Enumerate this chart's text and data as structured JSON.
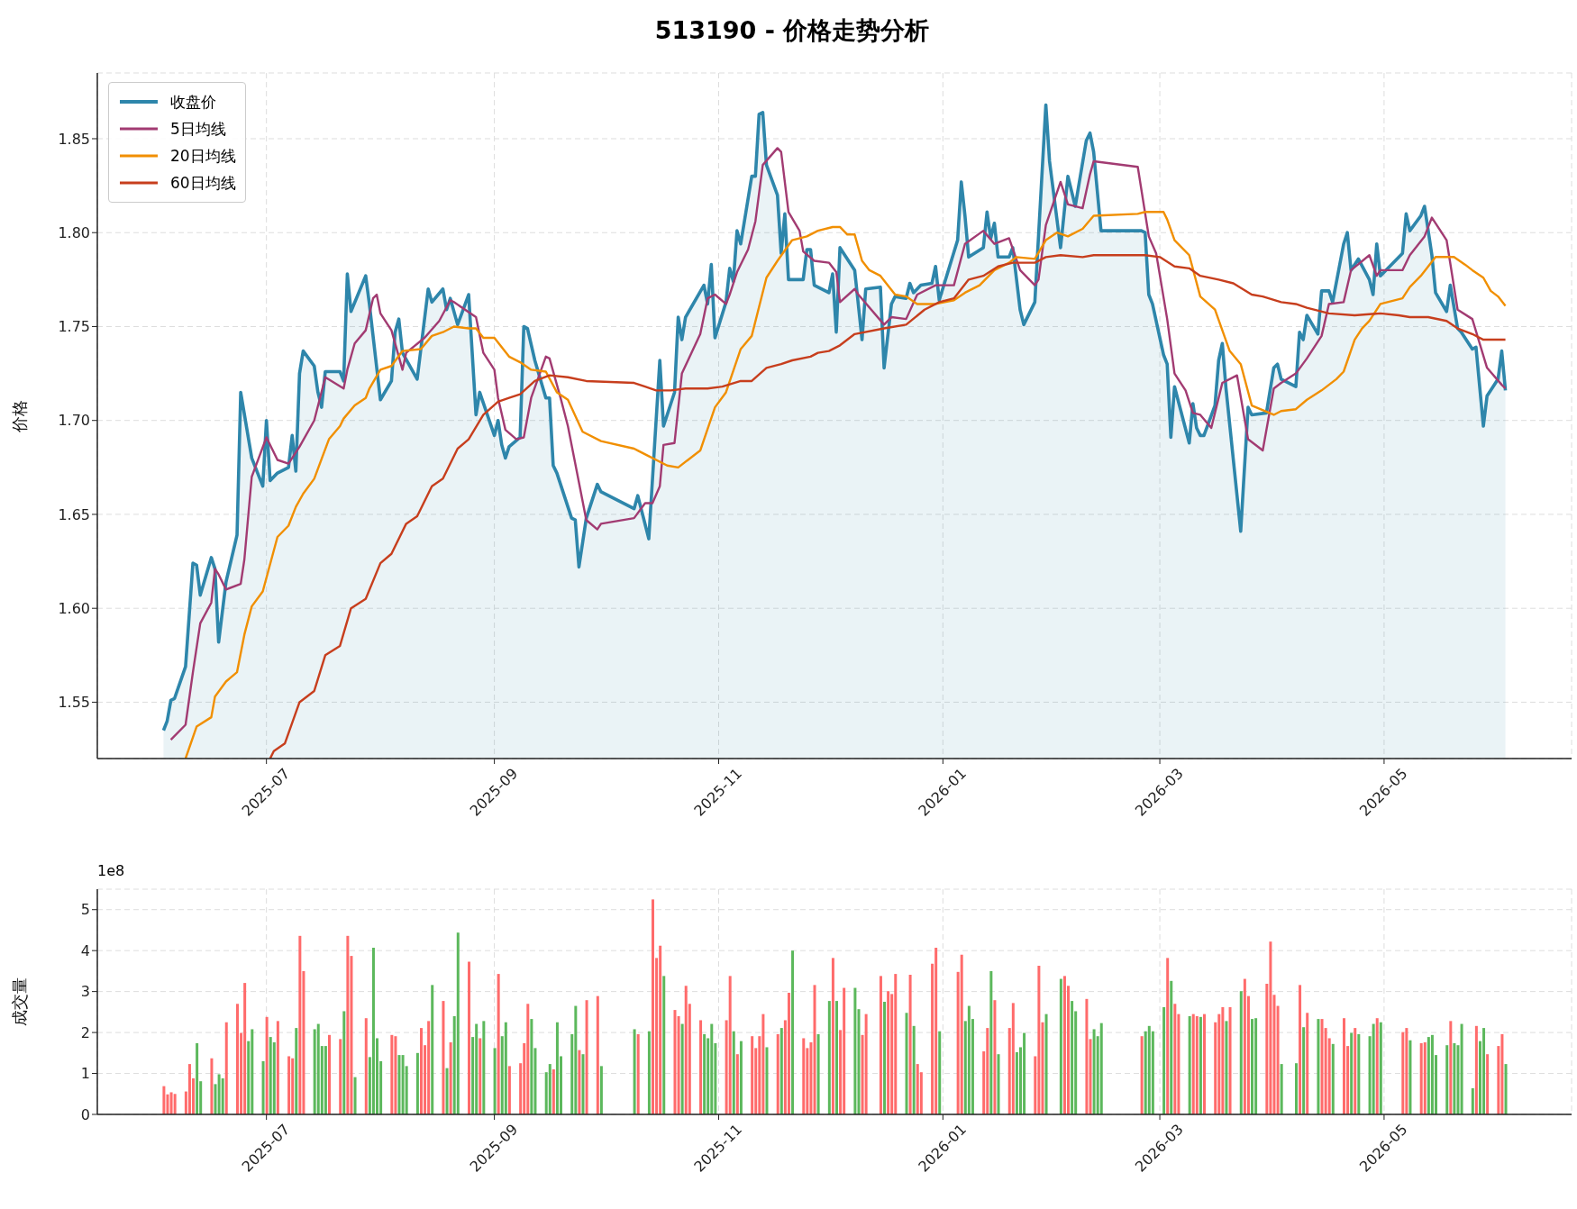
{
  "chart_data": [
    {
      "type": "line",
      "title": "513190 - 价格走势分析",
      "ylabel": "价格",
      "legend": "top left",
      "grid": true,
      "xlim": [
        "2025-05-16",
        "2026-06-21"
      ],
      "xticks": [
        {
          "value": "2025-07-01",
          "label": "2025-07"
        },
        {
          "value": "2025-09-01",
          "label": "2025-09"
        },
        {
          "value": "2025-11-01",
          "label": "2025-11"
        },
        {
          "value": "2026-01-01",
          "label": "2026-01"
        },
        {
          "value": "2026-03-01",
          "label": "2026-03"
        },
        {
          "value": "2026-05-01",
          "label": "2026-05"
        }
      ],
      "ylim": [
        1.52,
        1.885
      ],
      "yticks": [
        1.55,
        {
          "value": 1.6,
          "label": "1.60"
        },
        1.65,
        {
          "value": 1.7,
          "label": "1.70"
        },
        1.75,
        {
          "value": 1.8,
          "label": "1.80"
        },
        1.85
      ],
      "series": [
        {
          "name": "收盘价",
          "type": "area",
          "color": "#2e86ab",
          "x": [
            "2025-06-03",
            "2025-06-04",
            "2025-06-05",
            "2025-06-06",
            "2025-06-09",
            "2025-06-11",
            "2025-06-12",
            "2025-06-13",
            "2025-06-16",
            "2025-06-17",
            "2025-06-18",
            "2025-06-20",
            "2025-06-23",
            "2025-06-24",
            "2025-06-27",
            "2025-06-30",
            "2025-07-01",
            "2025-07-02",
            "2025-07-04",
            "2025-07-07",
            "2025-07-08",
            "2025-07-09",
            "2025-07-10",
            "2025-07-11",
            "2025-07-14",
            "2025-07-15",
            "2025-07-16",
            "2025-07-17",
            "2025-07-21",
            "2025-07-22",
            "2025-07-23",
            "2025-07-24",
            "2025-07-28",
            "2025-07-29",
            "2025-08-01",
            "2025-08-04",
            "2025-08-05",
            "2025-08-06",
            "2025-08-07",
            "2025-08-11",
            "2025-08-14",
            "2025-08-15",
            "2025-08-18",
            "2025-08-19",
            "2025-08-20",
            "2025-08-22",
            "2025-08-25",
            "2025-08-27",
            "2025-08-28",
            "2025-09-01",
            "2025-09-02",
            "2025-09-03",
            "2025-09-04",
            "2025-09-05",
            "2025-09-08",
            "2025-09-09",
            "2025-09-10",
            "2025-09-12",
            "2025-09-15",
            "2025-09-16",
            "2025-09-17",
            "2025-09-18",
            "2025-09-22",
            "2025-09-23",
            "2025-09-24",
            "2025-09-26",
            "2025-09-29",
            "2025-09-30",
            "2025-10-09",
            "2025-10-10",
            "2025-10-13",
            "2025-10-16",
            "2025-10-17",
            "2025-10-20",
            "2025-10-21",
            "2025-10-22",
            "2025-10-23",
            "2025-10-28",
            "2025-10-29",
            "2025-10-30",
            "2025-10-31",
            "2025-11-03",
            "2025-11-04",
            "2025-11-05",
            "2025-11-06",
            "2025-11-07",
            "2025-11-10",
            "2025-11-11",
            "2025-11-12",
            "2025-11-13",
            "2025-11-14",
            "2025-11-17",
            "2025-11-18",
            "2025-11-19",
            "2025-11-20",
            "2025-11-24",
            "2025-11-25",
            "2025-11-26",
            "2025-11-27",
            "2025-12-01",
            "2025-12-02",
            "2025-12-03",
            "2025-12-04",
            "2025-12-08",
            "2025-12-10",
            "2025-12-11",
            "2025-12-15",
            "2025-12-16",
            "2025-12-18",
            "2025-12-19",
            "2025-12-22",
            "2025-12-23",
            "2025-12-24",
            "2025-12-26",
            "2025-12-29",
            "2025-12-30",
            "2025-12-31",
            "2026-01-05",
            "2026-01-06",
            "2026-01-07",
            "2026-01-08",
            "2026-01-12",
            "2026-01-13",
            "2026-01-14",
            "2026-01-15",
            "2026-01-16",
            "2026-01-19",
            "2026-01-20",
            "2026-01-22",
            "2026-01-23",
            "2026-01-26",
            "2026-01-29",
            "2026-01-30",
            "2026-02-02",
            "2026-02-04",
            "2026-02-06",
            "2026-02-09",
            "2026-02-10",
            "2026-02-11",
            "2026-02-13",
            "2026-02-24",
            "2026-02-25",
            "2026-02-26",
            "2026-02-27",
            "2026-03-02",
            "2026-03-03",
            "2026-03-04",
            "2026-03-05",
            "2026-03-09",
            "2026-03-10",
            "2026-03-11",
            "2026-03-12",
            "2026-03-13",
            "2026-03-16",
            "2026-03-17",
            "2026-03-18",
            "2026-03-19",
            "2026-03-23",
            "2026-03-25",
            "2026-03-26",
            "2026-03-30",
            "2026-04-01",
            "2026-04-02",
            "2026-04-03",
            "2026-04-07",
            "2026-04-08",
            "2026-04-09",
            "2026-04-10",
            "2026-04-13",
            "2026-04-14",
            "2026-04-16",
            "2026-04-17",
            "2026-04-20",
            "2026-04-21",
            "2026-04-22",
            "2026-04-24",
            "2026-04-27",
            "2026-04-28",
            "2026-04-29",
            "2026-04-30",
            "2026-05-06",
            "2026-05-07",
            "2026-05-08",
            "2026-05-11",
            "2026-05-12",
            "2026-05-14",
            "2026-05-15",
            "2026-05-18",
            "2026-05-19",
            "2026-05-21",
            "2026-05-22",
            "2026-05-25",
            "2026-05-26",
            "2026-05-28",
            "2026-05-29",
            "2026-06-01",
            "2026-06-02",
            "2026-06-03"
          ],
          "values": [
            1.535,
            1.54,
            1.551,
            1.552,
            1.569,
            1.624,
            1.623,
            1.607,
            1.627,
            1.621,
            1.582,
            1.614,
            1.639,
            1.715,
            1.68,
            1.665,
            1.7,
            1.668,
            1.672,
            1.675,
            1.692,
            1.673,
            1.725,
            1.737,
            1.729,
            1.715,
            1.707,
            1.726,
            1.726,
            1.721,
            1.778,
            1.758,
            1.777,
            1.762,
            1.711,
            1.721,
            1.747,
            1.754,
            1.736,
            1.722,
            1.77,
            1.763,
            1.77,
            1.759,
            1.765,
            1.751,
            1.767,
            1.703,
            1.715,
            1.692,
            1.7,
            1.687,
            1.68,
            1.686,
            1.691,
            1.75,
            1.749,
            1.732,
            1.712,
            1.712,
            1.676,
            1.672,
            1.648,
            1.647,
            1.622,
            1.648,
            1.666,
            1.662,
            1.653,
            1.66,
            1.637,
            1.732,
            1.697,
            1.715,
            1.755,
            1.743,
            1.755,
            1.772,
            1.762,
            1.783,
            1.744,
            1.763,
            1.781,
            1.774,
            1.801,
            1.794,
            1.83,
            1.83,
            1.863,
            1.864,
            1.836,
            1.82,
            1.789,
            1.81,
            1.775,
            1.775,
            1.791,
            1.791,
            1.772,
            1.768,
            1.778,
            1.747,
            1.792,
            1.78,
            1.743,
            1.77,
            1.771,
            1.728,
            1.762,
            1.766,
            1.765,
            1.773,
            1.768,
            1.772,
            1.773,
            1.782,
            1.764,
            1.796,
            1.827,
            1.809,
            1.787,
            1.792,
            1.811,
            1.797,
            1.805,
            1.787,
            1.787,
            1.792,
            1.759,
            1.751,
            1.763,
            1.868,
            1.838,
            1.792,
            1.83,
            1.814,
            1.849,
            1.853,
            1.843,
            1.801,
            1.801,
            1.8,
            1.767,
            1.762,
            1.735,
            1.73,
            1.691,
            1.718,
            1.688,
            1.709,
            1.696,
            1.692,
            1.692,
            1.708,
            1.732,
            1.741,
            1.717,
            1.641,
            1.707,
            1.703,
            1.704,
            1.728,
            1.73,
            1.722,
            1.718,
            1.747,
            1.743,
            1.756,
            1.746,
            1.769,
            1.769,
            1.763,
            1.794,
            1.8,
            1.78,
            1.786,
            1.775,
            1.767,
            1.794,
            1.777,
            1.789,
            1.81,
            1.801,
            1.809,
            1.814,
            1.788,
            1.768,
            1.758,
            1.772,
            1.749,
            1.747,
            1.738,
            1.739,
            1.697,
            1.713,
            1.722,
            1.737,
            1.716
          ]
        },
        {
          "name": "5日均线",
          "color": "#a23b72",
          "x": [
            "2025-06-05",
            "2025-06-09",
            "2025-06-11",
            "2025-06-13",
            "2025-06-16",
            "2025-06-17",
            "2025-06-18",
            "2025-06-20",
            "2025-06-24",
            "2025-06-25",
            "2025-06-27",
            "2025-07-01",
            "2025-07-04",
            "2025-07-07",
            "2025-07-10",
            "2025-07-14",
            "2025-07-17",
            "2025-07-22",
            "2025-07-23",
            "2025-07-25",
            "2025-07-28",
            "2025-07-30",
            "2025-07-31",
            "2025-08-01",
            "2025-08-04",
            "2025-08-07",
            "2025-08-08",
            "2025-08-13",
            "2025-08-17",
            "2025-08-20",
            "2025-08-21",
            "2025-08-27",
            "2025-08-29",
            "2025-09-01",
            "2025-09-02",
            "2025-09-04",
            "2025-09-07",
            "2025-09-09",
            "2025-09-11",
            "2025-09-15",
            "2025-09-16",
            "2025-09-19",
            "2025-09-21",
            "2025-09-26",
            "2025-09-29",
            "2025-09-30",
            "2025-10-09",
            "2025-10-12",
            "2025-10-14",
            "2025-10-16",
            "2025-10-17",
            "2025-10-20",
            "2025-10-22",
            "2025-10-27",
            "2025-10-29",
            "2025-10-31",
            "2025-11-03",
            "2025-11-04",
            "2025-11-06",
            "2025-11-09",
            "2025-11-11",
            "2025-11-13",
            "2025-11-17",
            "2025-11-18",
            "2025-11-20",
            "2025-11-23",
            "2025-11-24",
            "2025-11-27",
            "2025-12-01",
            "2025-12-03",
            "2025-12-04",
            "2025-12-08",
            "2025-12-09",
            "2025-12-16",
            "2025-12-18",
            "2025-12-22",
            "2025-12-25",
            "2025-12-30",
            "2026-01-04",
            "2026-01-07",
            "2026-01-12",
            "2026-01-15",
            "2026-01-19",
            "2026-01-22",
            "2026-01-26",
            "2026-01-27",
            "2026-01-29",
            "2026-02-02",
            "2026-02-04",
            "2026-02-08",
            "2026-02-10",
            "2026-02-11",
            "2026-02-23",
            "2026-02-26",
            "2026-02-28",
            "2026-03-03",
            "2026-03-05",
            "2026-03-08",
            "2026-03-10",
            "2026-03-12",
            "2026-03-15",
            "2026-03-18",
            "2026-03-22",
            "2026-03-25",
            "2026-03-29",
            "2026-04-01",
            "2026-04-03",
            "2026-04-07",
            "2026-04-10",
            "2026-04-14",
            "2026-04-16",
            "2026-04-20",
            "2026-04-22",
            "2026-04-27",
            "2026-04-29",
            "2026-04-30",
            "2026-05-06",
            "2026-05-08",
            "2026-05-12",
            "2026-05-14",
            "2026-05-18",
            "2026-05-21",
            "2026-05-25",
            "2026-05-29",
            "2026-06-02",
            "2026-06-03"
          ],
          "values": [
            1.53,
            1.538,
            1.566,
            1.592,
            1.603,
            1.621,
            1.618,
            1.61,
            1.613,
            1.626,
            1.67,
            1.691,
            1.679,
            1.677,
            1.686,
            1.7,
            1.723,
            1.717,
            1.727,
            1.741,
            1.748,
            1.765,
            1.767,
            1.757,
            1.748,
            1.727,
            1.736,
            1.744,
            1.753,
            1.764,
            1.763,
            1.755,
            1.736,
            1.727,
            1.712,
            1.695,
            1.69,
            1.691,
            1.712,
            1.734,
            1.733,
            1.712,
            1.697,
            1.647,
            1.642,
            1.645,
            1.648,
            1.656,
            1.656,
            1.665,
            1.687,
            1.688,
            1.725,
            1.746,
            1.765,
            1.767,
            1.762,
            1.767,
            1.779,
            1.791,
            1.806,
            1.836,
            1.845,
            1.843,
            1.811,
            1.801,
            1.79,
            1.785,
            1.784,
            1.779,
            1.763,
            1.77,
            1.767,
            1.751,
            1.755,
            1.754,
            1.767,
            1.772,
            1.772,
            1.794,
            1.801,
            1.794,
            1.797,
            1.78,
            1.772,
            1.775,
            1.804,
            1.827,
            1.815,
            1.813,
            1.831,
            1.838,
            1.835,
            1.798,
            1.789,
            1.754,
            1.725,
            1.716,
            1.704,
            1.703,
            1.696,
            1.72,
            1.724,
            1.69,
            1.684,
            1.717,
            1.72,
            1.725,
            1.733,
            1.745,
            1.762,
            1.763,
            1.78,
            1.788,
            1.777,
            1.78,
            1.78,
            1.788,
            1.798,
            1.808,
            1.796,
            1.759,
            1.754,
            1.728,
            1.719,
            1.717
          ]
        },
        {
          "name": "20日均线",
          "color": "#f18f01",
          "x": [
            "2025-06-09",
            "2025-06-12",
            "2025-06-16",
            "2025-06-17",
            "2025-06-20",
            "2025-06-23",
            "2025-06-25",
            "2025-06-27",
            "2025-06-30",
            "2025-07-04",
            "2025-07-07",
            "2025-07-09",
            "2025-07-11",
            "2025-07-14",
            "2025-07-18",
            "2025-07-21",
            "2025-07-22",
            "2025-07-25",
            "2025-07-28",
            "2025-07-29",
            "2025-08-01",
            "2025-08-04",
            "2025-08-07",
            "2025-08-12",
            "2025-08-15",
            "2025-08-18",
            "2025-08-21",
            "2025-08-25",
            "2025-08-27",
            "2025-08-29",
            "2025-09-01",
            "2025-09-05",
            "2025-09-08",
            "2025-09-11",
            "2025-09-15",
            "2025-09-18",
            "2025-09-21",
            "2025-09-25",
            "2025-09-30",
            "2025-10-09",
            "2025-10-10",
            "2025-10-13",
            "2025-10-18",
            "2025-10-21",
            "2025-10-27",
            "2025-10-31",
            "2025-11-03",
            "2025-11-07",
            "2025-11-10",
            "2025-11-14",
            "2025-11-17",
            "2025-11-21",
            "2025-11-25",
            "2025-11-28",
            "2025-12-02",
            "2025-12-04",
            "2025-12-06",
            "2025-12-08",
            "2025-12-10",
            "2025-12-12",
            "2025-12-15",
            "2025-12-19",
            "2025-12-22",
            "2025-12-25",
            "2025-12-30",
            "2026-01-04",
            "2026-01-07",
            "2026-01-11",
            "2026-01-15",
            "2026-01-19",
            "2026-01-21",
            "2026-01-26",
            "2026-01-29",
            "2026-02-01",
            "2026-02-04",
            "2026-02-08",
            "2026-02-11",
            "2026-02-23",
            "2026-02-25",
            "2026-03-02",
            "2026-03-03",
            "2026-03-05",
            "2026-03-09",
            "2026-03-12",
            "2026-03-16",
            "2026-03-20",
            "2026-03-23",
            "2026-03-26",
            "2026-04-01",
            "2026-04-03",
            "2026-04-07",
            "2026-04-10",
            "2026-04-14",
            "2026-04-18",
            "2026-04-20",
            "2026-04-23",
            "2026-04-25",
            "2026-04-27",
            "2026-04-30",
            "2026-05-06",
            "2026-05-08",
            "2026-05-11",
            "2026-05-15",
            "2026-05-20",
            "2026-05-23",
            "2026-05-25",
            "2026-05-28",
            "2026-05-30",
            "2026-06-01",
            "2026-06-03"
          ],
          "values": [
            1.52,
            1.537,
            1.542,
            1.553,
            1.561,
            1.566,
            1.586,
            1.601,
            1.609,
            1.638,
            1.644,
            1.654,
            1.661,
            1.669,
            1.69,
            1.697,
            1.701,
            1.708,
            1.712,
            1.717,
            1.727,
            1.729,
            1.737,
            1.738,
            1.745,
            1.747,
            1.75,
            1.749,
            1.749,
            1.744,
            1.744,
            1.734,
            1.731,
            1.727,
            1.726,
            1.715,
            1.711,
            1.694,
            1.689,
            1.685,
            1.684,
            1.681,
            1.676,
            1.675,
            1.684,
            1.707,
            1.715,
            1.738,
            1.745,
            1.776,
            1.785,
            1.796,
            1.798,
            1.801,
            1.803,
            1.803,
            1.799,
            1.799,
            1.785,
            1.78,
            1.777,
            1.767,
            1.766,
            1.762,
            1.762,
            1.764,
            1.768,
            1.772,
            1.78,
            1.784,
            1.787,
            1.786,
            1.796,
            1.8,
            1.798,
            1.802,
            1.809,
            1.81,
            1.811,
            1.811,
            1.807,
            1.796,
            1.788,
            1.766,
            1.759,
            1.737,
            1.73,
            1.708,
            1.703,
            1.705,
            1.706,
            1.711,
            1.716,
            1.722,
            1.726,
            1.743,
            1.749,
            1.753,
            1.762,
            1.765,
            1.771,
            1.777,
            1.787,
            1.787,
            1.783,
            1.78,
            1.776,
            1.769,
            1.766,
            1.761
          ]
        },
        {
          "name": "60日均线",
          "color": "#c73e1d",
          "x": [
            "2025-07-02",
            "2025-07-03",
            "2025-07-06",
            "2025-07-10",
            "2025-07-14",
            "2025-07-17",
            "2025-07-21",
            "2025-07-24",
            "2025-07-28",
            "2025-08-01",
            "2025-08-04",
            "2025-08-08",
            "2025-08-11",
            "2025-08-15",
            "2025-08-18",
            "2025-08-22",
            "2025-08-25",
            "2025-08-29",
            "2025-09-02",
            "2025-09-05",
            "2025-09-08",
            "2025-09-12",
            "2025-09-16",
            "2025-09-21",
            "2025-09-26",
            "2025-10-09",
            "2025-10-12",
            "2025-10-15",
            "2025-10-19",
            "2025-10-23",
            "2025-10-29",
            "2025-11-02",
            "2025-11-07",
            "2025-11-10",
            "2025-11-14",
            "2025-11-18",
            "2025-11-21",
            "2025-11-26",
            "2025-11-28",
            "2025-12-01",
            "2025-12-04",
            "2025-12-08",
            "2025-12-16",
            "2025-12-22",
            "2025-12-27",
            "2025-12-31",
            "2026-01-04",
            "2026-01-08",
            "2026-01-12",
            "2026-01-16",
            "2026-01-20",
            "2026-01-26",
            "2026-01-29",
            "2026-02-02",
            "2026-02-08",
            "2026-02-11",
            "2026-02-25",
            "2026-03-01",
            "2026-03-05",
            "2026-03-09",
            "2026-03-12",
            "2026-03-17",
            "2026-03-21",
            "2026-03-26",
            "2026-03-29",
            "2026-04-03",
            "2026-04-07",
            "2026-04-10",
            "2026-04-16",
            "2026-04-23",
            "2026-04-30",
            "2026-05-05",
            "2026-05-08",
            "2026-05-13",
            "2026-05-18",
            "2026-05-21",
            "2026-05-25",
            "2026-05-28",
            "2026-06-02",
            "2026-06-03"
          ],
          "values": [
            1.52,
            1.524,
            1.528,
            1.55,
            1.556,
            1.575,
            1.58,
            1.6,
            1.605,
            1.624,
            1.629,
            1.645,
            1.649,
            1.665,
            1.669,
            1.685,
            1.69,
            1.703,
            1.71,
            1.712,
            1.714,
            1.721,
            1.724,
            1.723,
            1.721,
            1.72,
            1.718,
            1.716,
            1.716,
            1.717,
            1.717,
            1.718,
            1.721,
            1.721,
            1.728,
            1.73,
            1.732,
            1.734,
            1.736,
            1.737,
            1.74,
            1.746,
            1.749,
            1.751,
            1.759,
            1.763,
            1.765,
            1.775,
            1.777,
            1.782,
            1.784,
            1.784,
            1.787,
            1.788,
            1.787,
            1.788,
            1.788,
            1.787,
            1.782,
            1.781,
            1.777,
            1.775,
            1.773,
            1.767,
            1.766,
            1.763,
            1.762,
            1.76,
            1.757,
            1.756,
            1.757,
            1.756,
            1.755,
            1.755,
            1.753,
            1.749,
            1.746,
            1.743,
            1.743,
            1.743
          ]
        }
      ]
    },
    {
      "type": "bar",
      "ylabel": "成交量",
      "grid": true,
      "annotations": [
        "1e8"
      ],
      "xlim": [
        "2025-05-16",
        "2026-06-21"
      ],
      "xticks": [
        {
          "value": "2025-07-01",
          "label": "2025-07"
        },
        {
          "value": "2025-09-01",
          "label": "2025-09"
        },
        {
          "value": "2025-11-01",
          "label": "2025-11"
        },
        {
          "value": "2026-01-01",
          "label": "2026-01"
        },
        {
          "value": "2026-03-01",
          "label": "2026-03"
        },
        {
          "value": "2026-05-01",
          "label": "2026-05"
        }
      ],
      "ylim": [
        0,
        5.5
      ],
      "yticks": [
        0,
        1,
        2,
        3,
        4,
        5
      ],
      "x": [
        "2025-06-03",
        "2025-06-04",
        "2025-06-05",
        "2025-06-06",
        "2025-06-09",
        "2025-06-10",
        "2025-06-11",
        "2025-06-12",
        "2025-06-13",
        "2025-06-16",
        "2025-06-17",
        "2025-06-18",
        "2025-06-19",
        "2025-06-20",
        "2025-06-23",
        "2025-06-24",
        "2025-06-25",
        "2025-06-26",
        "2025-06-27",
        "2025-06-30",
        "2025-07-01",
        "2025-07-02",
        "2025-07-03",
        "2025-07-04",
        "2025-07-07",
        "2025-07-08",
        "2025-07-09",
        "2025-07-10",
        "2025-07-11",
        "2025-07-14",
        "2025-07-15",
        "2025-07-16",
        "2025-07-17",
        "2025-07-18",
        "2025-07-21",
        "2025-07-22",
        "2025-07-23",
        "2025-07-24",
        "2025-07-25",
        "2025-07-28",
        "2025-07-29",
        "2025-07-30",
        "2025-07-31",
        "2025-08-01",
        "2025-08-04",
        "2025-08-05",
        "2025-08-06",
        "2025-08-07",
        "2025-08-08",
        "2025-08-11",
        "2025-08-12",
        "2025-08-13",
        "2025-08-14",
        "2025-08-15",
        "2025-08-18",
        "2025-08-19",
        "2025-08-20",
        "2025-08-21",
        "2025-08-22",
        "2025-08-25",
        "2025-08-26",
        "2025-08-27",
        "2025-08-28",
        "2025-08-29",
        "2025-09-01",
        "2025-09-02",
        "2025-09-03",
        "2025-09-04",
        "2025-09-05",
        "2025-09-08",
        "2025-09-09",
        "2025-09-10",
        "2025-09-11",
        "2025-09-12",
        "2025-09-15",
        "2025-09-16",
        "2025-09-17",
        "2025-09-18",
        "2025-09-19",
        "2025-09-22",
        "2025-09-23",
        "2025-09-24",
        "2025-09-25",
        "2025-09-26",
        "2025-09-29",
        "2025-09-30",
        "2025-10-09",
        "2025-10-10",
        "2025-10-13",
        "2025-10-14",
        "2025-10-15",
        "2025-10-16",
        "2025-10-17",
        "2025-10-20",
        "2025-10-21",
        "2025-10-22",
        "2025-10-23",
        "2025-10-24",
        "2025-10-27",
        "2025-10-28",
        "2025-10-29",
        "2025-10-30",
        "2025-10-31",
        "2025-11-03",
        "2025-11-04",
        "2025-11-05",
        "2025-11-06",
        "2025-11-07",
        "2025-11-10",
        "2025-11-11",
        "2025-11-12",
        "2025-11-13",
        "2025-11-14",
        "2025-11-17",
        "2025-11-18",
        "2025-11-19",
        "2025-11-20",
        "2025-11-21",
        "2025-11-24",
        "2025-11-25",
        "2025-11-26",
        "2025-11-27",
        "2025-11-28",
        "2025-12-01",
        "2025-12-02",
        "2025-12-03",
        "2025-12-04",
        "2025-12-05",
        "2025-12-08",
        "2025-12-09",
        "2025-12-10",
        "2025-12-11",
        "2025-12-15",
        "2025-12-16",
        "2025-12-17",
        "2025-12-18",
        "2025-12-19",
        "2025-12-22",
        "2025-12-23",
        "2025-12-24",
        "2025-12-25",
        "2025-12-26",
        "2025-12-29",
        "2025-12-30",
        "2025-12-31",
        "2026-01-05",
        "2026-01-06",
        "2026-01-07",
        "2026-01-08",
        "2026-01-09",
        "2026-01-12",
        "2026-01-13",
        "2026-01-14",
        "2026-01-15",
        "2026-01-16",
        "2026-01-19",
        "2026-01-20",
        "2026-01-21",
        "2026-01-22",
        "2026-01-23",
        "2026-01-26",
        "2026-01-27",
        "2026-01-28",
        "2026-01-29",
        "2026-02-02",
        "2026-02-03",
        "2026-02-04",
        "2026-02-05",
        "2026-02-06",
        "2026-02-09",
        "2026-02-10",
        "2026-02-11",
        "2026-02-12",
        "2026-02-13",
        "2026-02-24",
        "2026-02-25",
        "2026-02-26",
        "2026-02-27",
        "2026-03-02",
        "2026-03-03",
        "2026-03-04",
        "2026-03-05",
        "2026-03-06",
        "2026-03-09",
        "2026-03-10",
        "2026-03-11",
        "2026-03-12",
        "2026-03-13",
        "2026-03-16",
        "2026-03-17",
        "2026-03-18",
        "2026-03-19",
        "2026-03-20",
        "2026-03-23",
        "2026-03-24",
        "2026-03-25",
        "2026-03-26",
        "2026-03-27",
        "2026-03-30",
        "2026-03-31",
        "2026-04-01",
        "2026-04-02",
        "2026-04-03",
        "2026-04-07",
        "2026-04-08",
        "2026-04-09",
        "2026-04-10",
        "2026-04-13",
        "2026-04-14",
        "2026-04-15",
        "2026-04-16",
        "2026-04-17",
        "2026-04-20",
        "2026-04-21",
        "2026-04-22",
        "2026-04-23",
        "2026-04-24",
        "2026-04-27",
        "2026-04-28",
        "2026-04-29",
        "2026-04-30",
        "2026-05-06",
        "2026-05-07",
        "2026-05-08",
        "2026-05-11",
        "2026-05-12",
        "2026-05-13",
        "2026-05-14",
        "2026-05-15",
        "2026-05-18",
        "2026-05-19",
        "2026-05-20",
        "2026-05-21",
        "2026-05-22",
        "2026-05-25",
        "2026-05-26",
        "2026-05-27",
        "2026-05-28",
        "2026-05-29",
        "2026-06-01",
        "2026-06-02",
        "2026-06-03"
      ],
      "values": [
        0.69,
        0.49,
        0.54,
        0.5,
        0.56,
        1.23,
        0.88,
        1.74,
        0.81,
        1.37,
        0.74,
        0.98,
        0.88,
        2.25,
        2.7,
        1.99,
        3.21,
        1.79,
        2.08,
        1.3,
        2.38,
        1.89,
        1.76,
        2.28,
        1.42,
        1.37,
        2.11,
        4.36,
        3.5,
        2.08,
        2.21,
        1.67,
        1.67,
        1.94,
        1.84,
        2.52,
        4.36,
        3.87,
        0.91,
        2.35,
        1.4,
        4.07,
        1.86,
        1.3,
        1.94,
        1.91,
        1.45,
        1.45,
        1.18,
        1.5,
        2.11,
        1.69,
        2.28,
        3.16,
        2.77,
        1.13,
        1.76,
        2.4,
        4.44,
        3.73,
        1.89,
        2.21,
        1.86,
        2.28,
        1.62,
        3.43,
        1.91,
        2.25,
        1.18,
        1.25,
        1.74,
        2.7,
        2.33,
        1.62,
        1.03,
        1.23,
        1.1,
        2.25,
        1.42,
        1.96,
        2.65,
        1.57,
        1.47,
        2.79,
        2.89,
        1.18,
        2.08,
        1.96,
        2.03,
        5.25,
        3.82,
        4.12,
        3.38,
        2.55,
        2.4,
        2.21,
        3.14,
        2.7,
        2.3,
        1.96,
        1.86,
        2.21,
        1.74,
        2.3,
        3.38,
        2.03,
        1.47,
        1.79,
        1.91,
        1.62,
        1.91,
        2.45,
        1.64,
        1.96,
        2.11,
        2.3,
        2.97,
        4.0,
        1.86,
        1.62,
        1.76,
        3.16,
        1.96,
        2.77,
        3.82,
        2.77,
        2.06,
        3.09,
        3.09,
        2.57,
        1.94,
        2.45,
        3.38,
        2.75,
        3.01,
        2.94,
        3.43,
        2.48,
        3.41,
        2.16,
        1.23,
        1.03,
        3.68,
        4.07,
        2.03,
        3.48,
        3.9,
        2.28,
        2.65,
        2.33,
        1.54,
        2.11,
        3.5,
        2.79,
        1.47,
        2.11,
        2.72,
        1.52,
        1.64,
        1.99,
        1.42,
        3.63,
        2.25,
        2.45,
        3.31,
        3.38,
        3.14,
        2.77,
        2.52,
        2.82,
        1.84,
        2.08,
        1.91,
        2.23,
        1.91,
        2.03,
        2.16,
        2.03,
        2.62,
        3.82,
        3.26,
        2.7,
        2.45,
        2.4,
        2.45,
        2.4,
        2.38,
        2.45,
        2.25,
        2.45,
        2.62,
        2.28,
        2.62,
        3.01,
        3.31,
        2.89,
        2.33,
        2.35,
        3.19,
        4.22,
        2.92,
        2.65,
        1.23,
        1.25,
        3.16,
        2.13,
        2.48,
        2.33,
        2.33,
        2.11,
        1.86,
        1.72,
        2.35,
        1.67,
        1.99,
        2.11,
        1.96,
        1.91,
        2.21,
        2.35,
        2.25,
        2.01,
        2.11,
        1.81,
        1.74,
        1.76,
        1.89,
        1.94,
        1.45,
        1.69,
        2.28,
        1.74,
        1.69,
        2.21,
        0.64,
        2.16,
        1.79,
        2.11,
        1.47,
        1.67,
        1.96,
        1.23
      ],
      "colors": [
        "#ff6b6b",
        "#ff6b6b",
        "#ff6b6b",
        "#ff6b6b",
        "#ff6b6b",
        "#ff6b6b",
        "#ff6b6b",
        "#5cb85c",
        "#5cb85c",
        "#ff6b6b",
        "#5cb85c",
        "#5cb85c",
        "#5cb85c",
        "#ff6b6b",
        "#ff6b6b",
        "#ff6b6b",
        "#ff6b6b",
        "#5cb85c",
        "#5cb85c",
        "#5cb85c",
        "#ff6b6b",
        "#5cb85c",
        "#5cb85c",
        "#ff6b6b",
        "#ff6b6b",
        "#ff6b6b",
        "#5cb85c",
        "#ff6b6b",
        "#ff6b6b",
        "#5cb85c",
        "#5cb85c",
        "#5cb85c",
        "#5cb85c",
        "#ff6b6b",
        "#ff6b6b",
        "#5cb85c",
        "#ff6b6b",
        "#ff6b6b",
        "#5cb85c",
        "#ff6b6b",
        "#5cb85c",
        "#5cb85c",
        "#5cb85c",
        "#5cb85c",
        "#ff6b6b",
        "#ff6b6b",
        "#5cb85c",
        "#5cb85c",
        "#5cb85c",
        "#5cb85c",
        "#ff6b6b",
        "#ff6b6b",
        "#ff6b6b",
        "#5cb85c",
        "#ff6b6b",
        "#5cb85c",
        "#ff6b6b",
        "#5cb85c",
        "#5cb85c",
        "#ff6b6b",
        "#5cb85c",
        "#5cb85c",
        "#ff6b6b",
        "#5cb85c",
        "#5cb85c",
        "#ff6b6b",
        "#5cb85c",
        "#5cb85c",
        "#ff6b6b",
        "#ff6b6b",
        "#ff6b6b",
        "#ff6b6b",
        "#5cb85c",
        "#5cb85c",
        "#5cb85c",
        "#5cb85c",
        "#ff6b6b",
        "#5cb85c",
        "#5cb85c",
        "#5cb85c",
        "#5cb85c",
        "#ff6b6b",
        "#5cb85c",
        "#ff6b6b",
        "#ff6b6b",
        "#5cb85c",
        "#5cb85c",
        "#ff6b6b",
        "#5cb85c",
        "#ff6b6b",
        "#ff6b6b",
        "#ff6b6b",
        "#5cb85c",
        "#ff6b6b",
        "#ff6b6b",
        "#5cb85c",
        "#ff6b6b",
        "#ff6b6b",
        "#ff6b6b",
        "#5cb85c",
        "#5cb85c",
        "#5cb85c",
        "#5cb85c",
        "#ff6b6b",
        "#ff6b6b",
        "#5cb85c",
        "#ff6b6b",
        "#5cb85c",
        "#ff6b6b",
        "#ff6b6b",
        "#ff6b6b",
        "#ff6b6b",
        "#5cb85c",
        "#ff6b6b",
        "#5cb85c",
        "#ff6b6b",
        "#ff6b6b",
        "#5cb85c",
        "#ff6b6b",
        "#ff6b6b",
        "#ff6b6b",
        "#ff6b6b",
        "#5cb85c",
        "#5cb85c",
        "#ff6b6b",
        "#5cb85c",
        "#ff6b6b",
        "#ff6b6b",
        "#5cb85c",
        "#5cb85c",
        "#ff6b6b",
        "#ff6b6b",
        "#ff6b6b",
        "#5cb85c",
        "#ff6b6b",
        "#ff6b6b",
        "#ff6b6b",
        "#5cb85c",
        "#ff6b6b",
        "#5cb85c",
        "#ff6b6b",
        "#ff6b6b",
        "#ff6b6b",
        "#ff6b6b",
        "#5cb85c",
        "#ff6b6b",
        "#ff6b6b",
        "#5cb85c",
        "#5cb85c",
        "#5cb85c",
        "#ff6b6b",
        "#ff6b6b",
        "#5cb85c",
        "#ff6b6b",
        "#5cb85c",
        "#ff6b6b",
        "#ff6b6b",
        "#5cb85c",
        "#5cb85c",
        "#5cb85c",
        "#ff6b6b",
        "#ff6b6b",
        "#ff6b6b",
        "#5cb85c",
        "#5cb85c",
        "#ff6b6b",
        "#ff6b6b",
        "#5cb85c",
        "#5cb85c",
        "#ff6b6b",
        "#ff6b6b",
        "#5cb85c",
        "#5cb85c",
        "#5cb85c",
        "#ff6b6b",
        "#5cb85c",
        "#5cb85c",
        "#5cb85c",
        "#5cb85c",
        "#ff6b6b",
        "#5cb85c",
        "#ff6b6b",
        "#ff6b6b",
        "#5cb85c",
        "#ff6b6b",
        "#ff6b6b",
        "#5cb85c",
        "#ff6b6b",
        "#ff6b6b",
        "#ff6b6b",
        "#ff6b6b",
        "#5cb85c",
        "#ff6b6b",
        "#5cb85c",
        "#ff6b6b",
        "#ff6b6b",
        "#5cb85c",
        "#5cb85c",
        "#ff6b6b",
        "#ff6b6b",
        "#ff6b6b",
        "#ff6b6b",
        "#5cb85c",
        "#5cb85c",
        "#ff6b6b",
        "#5cb85c",
        "#ff6b6b",
        "#5cb85c",
        "#ff6b6b",
        "#ff6b6b",
        "#ff6b6b",
        "#5cb85c",
        "#ff6b6b",
        "#ff6b6b",
        "#5cb85c",
        "#ff6b6b",
        "#5cb85c",
        "#5cb85c",
        "#5cb85c",
        "#ff6b6b",
        "#5cb85c",
        "#ff6b6b",
        "#ff6b6b",
        "#5cb85c",
        "#ff6b6b",
        "#ff6b6b",
        "#5cb85c",
        "#5cb85c",
        "#5cb85c",
        "#5cb85c",
        "#ff6b6b",
        "#5cb85c",
        "#5cb85c",
        "#5cb85c",
        "#5cb85c",
        "#ff6b6b",
        "#5cb85c",
        "#5cb85c",
        "#ff6b6b",
        "#ff6b6b",
        "#ff6b6b",
        "#5cb85c"
      ]
    }
  ]
}
